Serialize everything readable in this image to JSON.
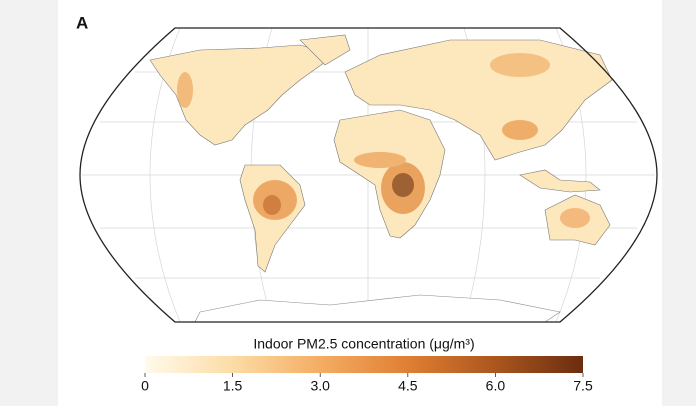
{
  "panel_label": "A",
  "colorbar": {
    "title": "Indoor PM2.5 concentration (μg/m³)",
    "lim": [
      0,
      7.5
    ],
    "ticks": [
      0,
      1.5,
      {
        "value": 3,
        "label": "3.0"
      },
      4.5,
      {
        "value": 6,
        "label": "6.0"
      },
      7.5
    ],
    "colors": [
      "#fffaec",
      "#fcdca6",
      "#f4ad63",
      "#df7f33",
      "#ab561e",
      "#6a2d0f"
    ]
  }
}
